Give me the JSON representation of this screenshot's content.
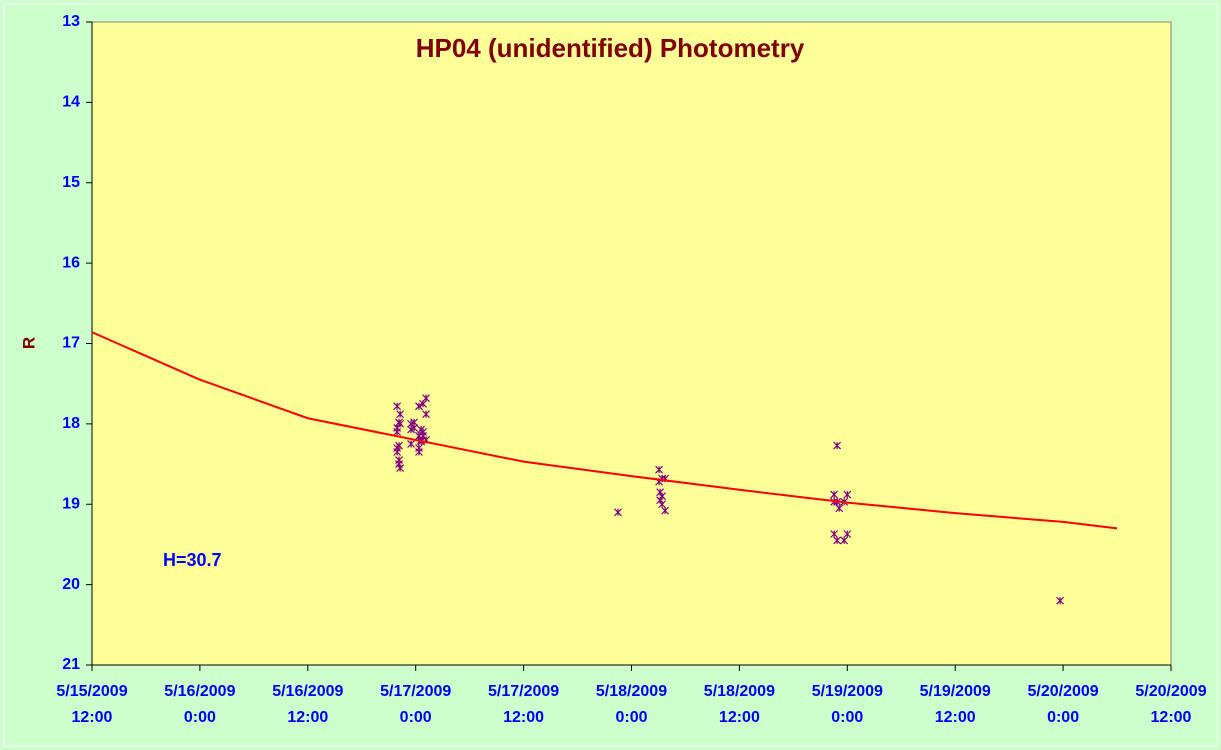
{
  "chart_data": {
    "type": "scatter",
    "title": "HP04 (unidentified) Photometry",
    "ylabel": "R",
    "annotation": "H=30.7",
    "xlim": [
      "2009-05-15T12:00",
      "2009-05-20T12:00"
    ],
    "xticks": [
      {
        "value": "2009-05-15T12:00",
        "label": "5/15/2009 12:00"
      },
      {
        "value": "2009-05-16T00:00",
        "label": "5/16/2009 0:00"
      },
      {
        "value": "2009-05-16T12:00",
        "label": "5/16/2009 12:00"
      },
      {
        "value": "2009-05-17T00:00",
        "label": "5/17/2009 0:00"
      },
      {
        "value": "2009-05-17T12:00",
        "label": "5/17/2009 12:00"
      },
      {
        "value": "2009-05-18T00:00",
        "label": "5/18/2009 0:00"
      },
      {
        "value": "2009-05-18T12:00",
        "label": "5/18/2009 12:00"
      },
      {
        "value": "2009-05-19T00:00",
        "label": "5/19/2009 0:00"
      },
      {
        "value": "2009-05-19T12:00",
        "label": "5/19/2009 12:00"
      },
      {
        "value": "2009-05-20T00:00",
        "label": "5/20/2009 0:00"
      },
      {
        "value": "2009-05-20T12:00",
        "label": "5/20/2009 12:00"
      }
    ],
    "ylim": [
      21,
      13
    ],
    "yticks": [
      13,
      14,
      15,
      16,
      17,
      18,
      19,
      20,
      21
    ],
    "series": [
      {
        "type": "scatter",
        "color": "#800080",
        "x": [
          "2009-05-16T21:56",
          "2009-05-16T21:56",
          "2009-05-16T21:56",
          "2009-05-16T21:56",
          "2009-05-16T21:56",
          "2009-05-16T22:09",
          "2009-05-16T22:09",
          "2009-05-16T22:09",
          "2009-05-16T22:09",
          "2009-05-16T22:16",
          "2009-05-16T22:16",
          "2009-05-16T22:16",
          "2009-05-16T23:29",
          "2009-05-16T23:29",
          "2009-05-16T23:29",
          "2009-05-16T23:49",
          "2009-05-16T23:49",
          "2009-05-17T00:22",
          "2009-05-17T00:22",
          "2009-05-17T00:22",
          "2009-05-17T00:22",
          "2009-05-17T00:36",
          "2009-05-17T00:36",
          "2009-05-17T00:36",
          "2009-05-17T00:49",
          "2009-05-17T00:49",
          "2009-05-17T00:49",
          "2009-05-17T01:09",
          "2009-05-17T01:09",
          "2009-05-17T01:09",
          "2009-05-17T22:30",
          "2009-05-18T03:04",
          "2009-05-18T03:04",
          "2009-05-18T03:11",
          "2009-05-18T03:11",
          "2009-05-18T03:24",
          "2009-05-18T03:24",
          "2009-05-18T03:24",
          "2009-05-18T03:44",
          "2009-05-18T03:44",
          "2009-05-18T22:32",
          "2009-05-18T22:32",
          "2009-05-18T22:32",
          "2009-05-18T22:52",
          "2009-05-18T22:52",
          "2009-05-18T22:52",
          "2009-05-18T23:06",
          "2009-05-18T23:39",
          "2009-05-18T23:39",
          "2009-05-19T00:00",
          "2009-05-19T00:00",
          "2009-05-19T23:40"
        ],
        "values": [
          17.78,
          18.05,
          18.1,
          18.35,
          18.3,
          17.98,
          18.27,
          18.45,
          18.5,
          17.88,
          18.0,
          18.55,
          18.0,
          18.07,
          18.25,
          17.98,
          18.05,
          17.78,
          18.15,
          18.3,
          18.35,
          18.07,
          18.2,
          18.22,
          17.75,
          18.15,
          18.1,
          17.88,
          17.68,
          18.2,
          19.1,
          18.57,
          18.72,
          18.85,
          18.95,
          18.68,
          18.9,
          19.0,
          19.08,
          18.68,
          18.88,
          18.97,
          19.37,
          18.27,
          18.97,
          19.45,
          19.05,
          18.97,
          19.45,
          18.88,
          19.37,
          20.2
        ]
      },
      {
        "type": "line",
        "color": "#ff0000",
        "x": [
          "2009-05-15T12:00",
          "2009-05-16T00:00",
          "2009-05-16T12:00",
          "2009-05-17T00:00",
          "2009-05-17T12:00",
          "2009-05-18T00:00",
          "2009-05-18T12:00",
          "2009-05-19T00:00",
          "2009-05-19T12:00",
          "2009-05-20T00:00",
          "2009-05-20T06:00"
        ],
        "values": [
          16.86,
          17.45,
          17.93,
          18.2,
          18.47,
          18.65,
          18.82,
          18.98,
          19.11,
          19.22,
          19.3
        ]
      }
    ]
  }
}
